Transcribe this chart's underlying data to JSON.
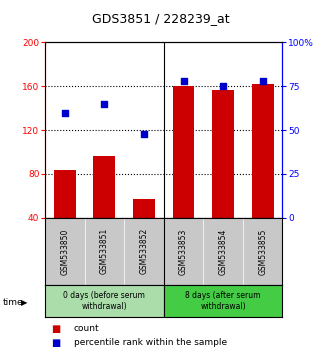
{
  "title": "GDS3851 / 228239_at",
  "samples": [
    "GSM533850",
    "GSM533851",
    "GSM533852",
    "GSM533853",
    "GSM533854",
    "GSM533855"
  ],
  "counts": [
    84,
    96,
    57,
    160,
    157,
    162
  ],
  "percentiles": [
    60,
    65,
    48,
    78,
    75,
    78
  ],
  "ylim_left": [
    40,
    200
  ],
  "ylim_right": [
    0,
    100
  ],
  "yticks_left": [
    40,
    80,
    120,
    160,
    200
  ],
  "yticks_right": [
    0,
    25,
    50,
    75,
    100
  ],
  "ytick_labels_right": [
    "0",
    "25",
    "50",
    "75",
    "100%"
  ],
  "bar_color": "#cc0000",
  "scatter_color": "#0000cc",
  "hgrid_values": [
    80,
    120,
    160
  ],
  "group1_label": "0 days (before serum\nwithdrawal)",
  "group2_label": "8 days (after serum\nwithdrawal)",
  "legend_count": "count",
  "legend_pct": "percentile rank within the sample",
  "background_plot": "#ffffff",
  "background_labels": "#c8c8c8",
  "background_group1": "#aaddaa",
  "background_group2": "#44cc44",
  "bar_width": 0.55,
  "title_fontsize": 9,
  "tick_fontsize": 6.5,
  "label_fontsize": 5.5,
  "group_fontsize": 5.5,
  "legend_fontsize": 6.5
}
